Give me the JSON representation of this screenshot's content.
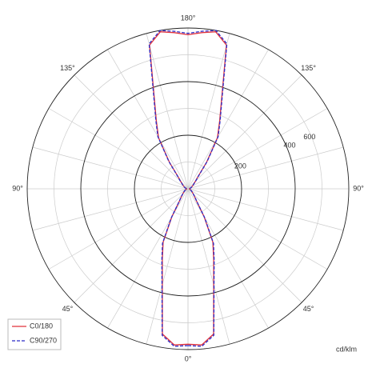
{
  "chart_data": {
    "type": "polar",
    "angle_step": 5,
    "rlim": [
      0,
      600
    ],
    "rticks": [
      200,
      400,
      600
    ],
    "rminor": [
      100,
      300,
      500
    ],
    "angle_grid": 15,
    "angle_ticks": [
      {
        "value": 0,
        "label": "0°"
      },
      {
        "value": 45,
        "label": "45°"
      },
      {
        "value": 90,
        "label": "90°"
      },
      {
        "value": 135,
        "label": "135°"
      },
      {
        "value": 180,
        "label": "180°"
      }
    ],
    "unit": "cd/klm",
    "series": [
      {
        "name": "C0/180",
        "color": "#e0303a",
        "dash": false,
        "values": [
          580,
          585,
          550,
          370,
          280,
          220,
          120,
          55,
          38,
          28,
          22,
          18,
          14,
          11,
          9,
          7,
          6,
          5,
          5,
          6,
          7,
          9,
          11,
          14,
          18,
          22,
          28,
          38,
          55,
          120,
          220,
          280,
          370,
          555,
          595,
          585,
          575
        ]
      },
      {
        "name": "C90/270",
        "color": "#2b2bc8",
        "dash": true,
        "values": [
          585,
          590,
          555,
          375,
          285,
          225,
          125,
          58,
          40,
          29,
          23,
          18,
          14,
          11,
          9,
          7,
          6,
          5,
          5,
          6,
          7,
          9,
          11,
          14,
          18,
          23,
          29,
          40,
          58,
          125,
          225,
          285,
          375,
          560,
          600,
          590,
          580
        ]
      }
    ],
    "legend": "lower left"
  }
}
